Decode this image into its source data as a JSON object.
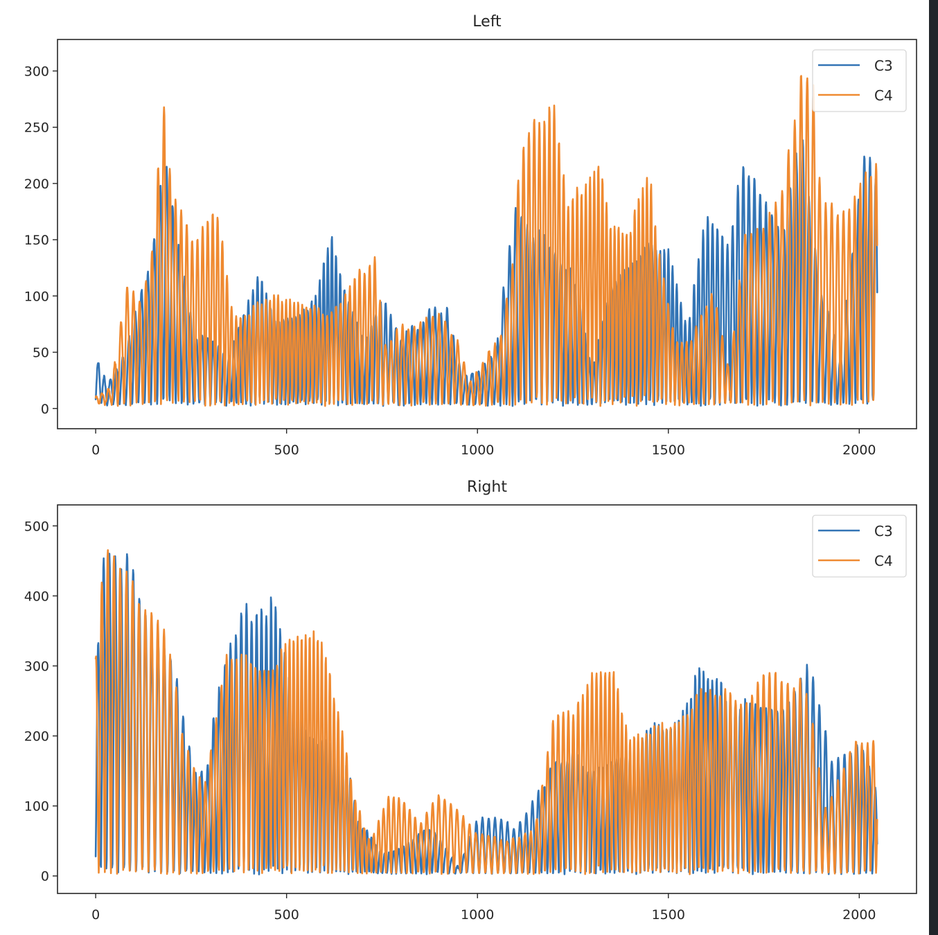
{
  "figure": {
    "background": "#ffffff",
    "side_strip_color": "#21252b"
  },
  "chart_data": [
    {
      "type": "line",
      "title": "Left",
      "xlabel": "",
      "ylabel": "",
      "xlim": [
        -100,
        2150
      ],
      "ylim": [
        -18,
        328
      ],
      "x_ticks": [
        0,
        500,
        1000,
        1500,
        2000
      ],
      "x_tick_labels": [
        "0",
        "500",
        "1000",
        "1500",
        "2000"
      ],
      "y_ticks": [
        0,
        50,
        100,
        150,
        200,
        250,
        300
      ],
      "y_tick_labels": [
        "0",
        "50",
        "100",
        "150",
        "200",
        "250",
        "300"
      ],
      "grid": false,
      "legend": {
        "placement": "top-right",
        "entries": [
          "C3",
          "C4"
        ]
      },
      "n_samples": 2048,
      "series": [
        {
          "name": "C3",
          "color": "#3274b5",
          "envelope_x": [
            0,
            30,
            80,
            140,
            170,
            190,
            210,
            260,
            300,
            350,
            410,
            430,
            470,
            560,
            600,
            620,
            650,
            700,
            750,
            800,
            880,
            920,
            960,
            1000,
            1050,
            1080,
            1100,
            1150,
            1250,
            1300,
            1350,
            1450,
            1500,
            1550,
            1600,
            1650,
            1700,
            1720,
            1760,
            1800,
            1850,
            1900,
            1950,
            2000,
            2020,
            2047
          ],
          "envelope_y": [
            48,
            20,
            52,
            135,
            205,
            225,
            175,
            65,
            60,
            45,
            105,
            125,
            80,
            85,
            135,
            157,
            110,
            60,
            100,
            60,
            90,
            90,
            28,
            30,
            55,
            140,
            185,
            160,
            130,
            30,
            110,
            150,
            150,
            75,
            175,
            150,
            220,
            225,
            185,
            160,
            262,
            110,
            40,
            200,
            255,
            215
          ]
        },
        {
          "name": "C4",
          "color": "#ef8a31",
          "envelope_x": [
            0,
            40,
            80,
            120,
            150,
            170,
            180,
            200,
            230,
            260,
            310,
            330,
            360,
            420,
            480,
            530,
            600,
            650,
            730,
            760,
            800,
            900,
            950,
            980,
            1030,
            1060,
            1090,
            1110,
            1150,
            1200,
            1240,
            1300,
            1320,
            1350,
            1400,
            1450,
            1480,
            1520,
            1560,
            1620,
            1660,
            1700,
            1750,
            1800,
            1840,
            1850,
            1880,
            1900,
            1950,
            2000,
            2047
          ],
          "envelope_y": [
            8,
            15,
            108,
            95,
            146,
            244,
            268,
            212,
            165,
            158,
            180,
            170,
            80,
            90,
            100,
            100,
            85,
            100,
            143,
            55,
            70,
            82,
            60,
            20,
            50,
            60,
            125,
            232,
            270,
            280,
            180,
            225,
            237,
            170,
            170,
            215,
            140,
            60,
            60,
            110,
            30,
            170,
            170,
            210,
            275,
            312,
            295,
            205,
            170,
            205,
            240
          ]
        }
      ]
    },
    {
      "type": "line",
      "title": "Right",
      "xlabel": "",
      "ylabel": "",
      "xlim": [
        -100,
        2150
      ],
      "ylim": [
        -25,
        530
      ],
      "x_ticks": [
        0,
        500,
        1000,
        1500,
        2000
      ],
      "x_tick_labels": [
        "0",
        "500",
        "1000",
        "1500",
        "2000"
      ],
      "y_ticks": [
        0,
        100,
        200,
        300,
        400,
        500
      ],
      "y_tick_labels": [
        "0",
        "100",
        "200",
        "300",
        "400",
        "500"
      ],
      "grid": false,
      "legend": {
        "placement": "top-right",
        "entries": [
          "C3",
          "C4"
        ]
      },
      "n_samples": 2048,
      "series": [
        {
          "name": "C3",
          "color": "#3274b5",
          "envelope_x": [
            0,
            20,
            40,
            70,
            100,
            140,
            180,
            220,
            260,
            290,
            310,
            350,
            400,
            430,
            470,
            520,
            580,
            640,
            660,
            690,
            750,
            800,
            880,
            950,
            1000,
            1050,
            1100,
            1150,
            1200,
            1250,
            1300,
            1400,
            1450,
            1500,
            1560,
            1580,
            1620,
            1700,
            1760,
            1800,
            1840,
            1860,
            1900,
            1930,
            1960,
            2000,
            2047
          ],
          "envelope_y": [
            300,
            490,
            505,
            485,
            440,
            380,
            345,
            270,
            160,
            150,
            230,
            350,
            395,
            425,
            390,
            250,
            200,
            180,
            170,
            80,
            30,
            40,
            70,
            10,
            80,
            80,
            70,
            110,
            170,
            180,
            150,
            180,
            230,
            220,
            275,
            298,
            285,
            260,
            240,
            250,
            290,
            305,
            260,
            170,
            180,
            210,
            115
          ]
        },
        {
          "name": "C4",
          "color": "#ef8a31",
          "envelope_x": [
            0,
            20,
            40,
            70,
            100,
            140,
            180,
            220,
            260,
            290,
            310,
            350,
            400,
            450,
            520,
            560,
            600,
            640,
            680,
            720,
            760,
            800,
            850,
            900,
            950,
            1000,
            1050,
            1100,
            1150,
            1200,
            1250,
            1300,
            1350,
            1400,
            1450,
            1500,
            1550,
            1600,
            1650,
            1700,
            1750,
            1800,
            1850,
            1880,
            1910,
            1950,
            2000,
            2047
          ],
          "envelope_y": [
            335,
            485,
            470,
            450,
            420,
            395,
            360,
            240,
            160,
            140,
            205,
            340,
            330,
            300,
            355,
            360,
            330,
            250,
            105,
            50,
            110,
            110,
            75,
            125,
            100,
            60,
            55,
            50,
            70,
            240,
            240,
            320,
            320,
            210,
            220,
            230,
            240,
            280,
            285,
            260,
            300,
            300,
            280,
            225,
            100,
            150,
            200,
            195
          ]
        }
      ]
    }
  ]
}
